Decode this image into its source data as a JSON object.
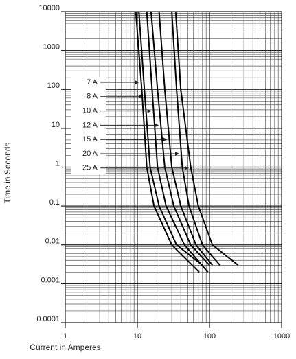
{
  "chart_data": {
    "type": "line",
    "xlabel": "Current in Amperes",
    "ylabel": "Time in Seconds",
    "xscale": "log",
    "yscale": "log",
    "xlim": [
      1,
      1000
    ],
    "ylim": [
      0.0001,
      10000
    ],
    "xticks": [
      1,
      10,
      100,
      1000
    ],
    "yticks": [
      0.0001,
      0.001,
      0.01,
      0.1,
      1,
      10,
      100,
      1000,
      10000
    ],
    "grid": true,
    "minor_grid": true,
    "series": [
      {
        "name": "7 A",
        "color": "#000000",
        "x": [
          9.5,
          11.5,
          13.5,
          17,
          30,
          72
        ],
        "values": [
          10000,
          100,
          1,
          0.1,
          0.01,
          0.002
        ]
      },
      {
        "name": "8 A",
        "color": "#000000",
        "x": [
          10.5,
          12.5,
          15,
          20,
          35,
          80
        ],
        "values": [
          10000,
          100,
          1,
          0.1,
          0.01,
          0.003
        ]
      },
      {
        "name": "10 A",
        "color": "#000000",
        "x": [
          13.5,
          16,
          19,
          25,
          45,
          95
        ],
        "values": [
          10000,
          100,
          1,
          0.1,
          0.01,
          0.002
        ]
      },
      {
        "name": "12 A",
        "color": "#000000",
        "x": [
          15.5,
          19,
          24,
          32,
          55,
          100
        ],
        "values": [
          10000,
          100,
          1,
          0.1,
          0.01,
          0.003
        ]
      },
      {
        "name": "15 A",
        "color": "#000000",
        "x": [
          20,
          24,
          30,
          40,
          65,
          110
        ],
        "values": [
          10000,
          100,
          1,
          0.1,
          0.01,
          0.003
        ]
      },
      {
        "name": "20 A",
        "color": "#000000",
        "x": [
          30,
          35,
          42,
          52,
          80,
          140
        ],
        "values": [
          10000,
          100,
          1,
          0.1,
          0.01,
          0.003
        ]
      },
      {
        "name": "25 A",
        "color": "#000000",
        "x": [
          34,
          40,
          55,
          70,
          110,
          250
        ],
        "values": [
          10000,
          100,
          1,
          0.1,
          0.01,
          0.003
        ]
      }
    ]
  }
}
